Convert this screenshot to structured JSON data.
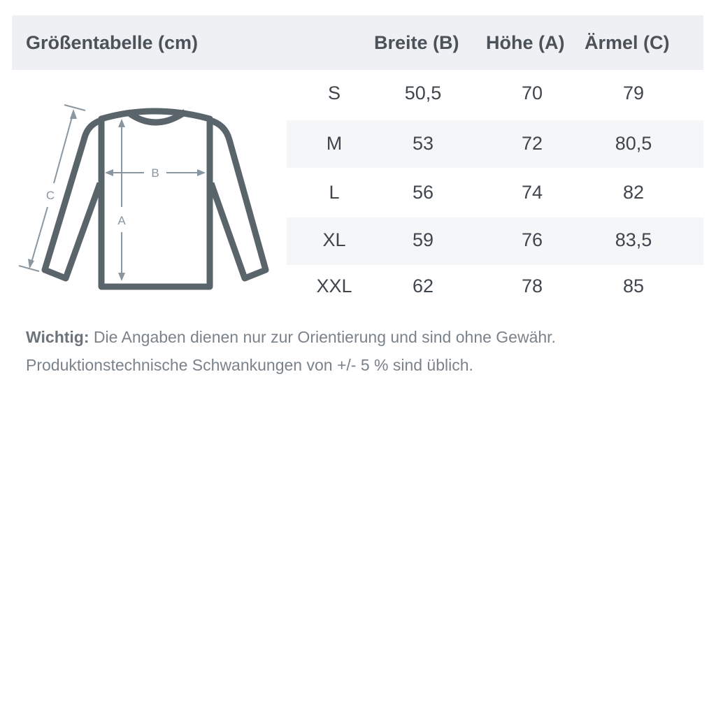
{
  "header": {
    "title": "Größentabelle (cm)",
    "columns": [
      "Breite (B)",
      "Höhe (A)",
      "Ärmel (C)"
    ]
  },
  "rows": [
    {
      "size": "S",
      "breite": "50,5",
      "hoehe": "70",
      "aermel": "79"
    },
    {
      "size": "M",
      "breite": "53",
      "hoehe": "72",
      "aermel": "80,5"
    },
    {
      "size": "L",
      "breite": "56",
      "hoehe": "74",
      "aermel": "82"
    },
    {
      "size": "XL",
      "breite": "59",
      "hoehe": "76",
      "aermel": "83,5"
    },
    {
      "size": "XXL",
      "breite": "62",
      "hoehe": "78",
      "aermel": "85"
    }
  ],
  "diagram": {
    "labels": {
      "a": "A",
      "b": "B",
      "c": "C"
    }
  },
  "note": {
    "bold": "Wichtig:",
    "line1": "Die Angaben dienen nur zur Orientierung und sind ohne Gewähr.",
    "line2": "Produktionstechnische Schwankungen von +/- 5 % sind üblich."
  },
  "colors": {
    "outline": "#5a656b",
    "arrows": "#8a96a0",
    "header_bg": "#eef0f3"
  }
}
